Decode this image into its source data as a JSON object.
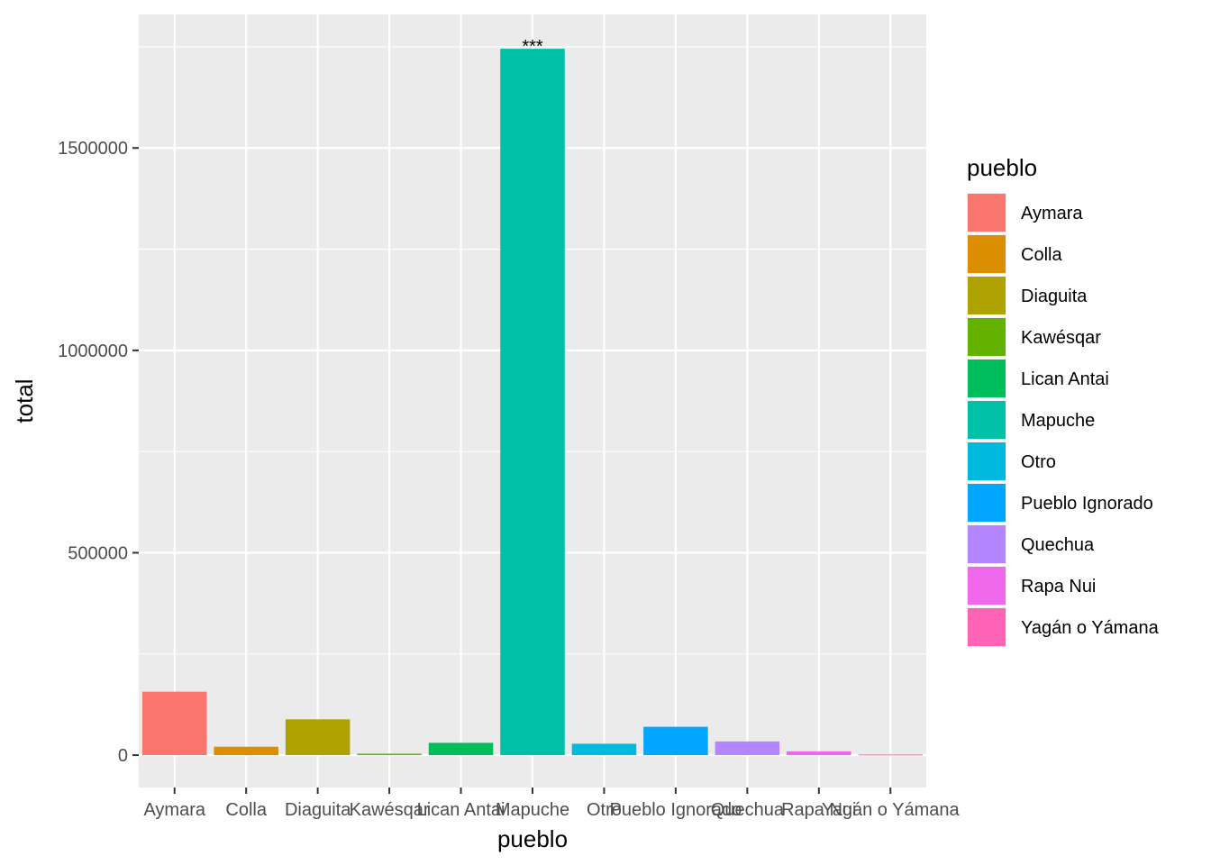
{
  "chart_data": {
    "type": "bar",
    "title": "",
    "xlabel": "pueblo",
    "ylabel": "total",
    "legend_title": "pueblo",
    "legend_position": "right",
    "grid": true,
    "ylim": [
      -80000,
      1830000
    ],
    "y_ticks": [
      0,
      500000,
      1000000,
      1500000
    ],
    "y_tick_labels": [
      "0",
      "500000",
      "1000000",
      "1500000"
    ],
    "categories": [
      "Aymara",
      "Colla",
      "Diaguita",
      "Kawésqar",
      "Lican Antai",
      "Mapuche",
      "Otro",
      "Pueblo Ignorado",
      "Quechua",
      "Rapa Nui",
      "Yagán o Yámana"
    ],
    "values": [
      156754,
      20744,
      88474,
      3448,
      30369,
      1745147,
      28115,
      70000,
      33868,
      9399,
      1600
    ],
    "colors": [
      "#F8766D",
      "#DB8E00",
      "#AEA200",
      "#64B200",
      "#00BD5C",
      "#00C1A7",
      "#00BADE",
      "#00A6FF",
      "#B385FF",
      "#EF67EB",
      "#FF63B6"
    ],
    "annotations": [
      {
        "category": "Mapuche",
        "text": "***"
      }
    ]
  }
}
